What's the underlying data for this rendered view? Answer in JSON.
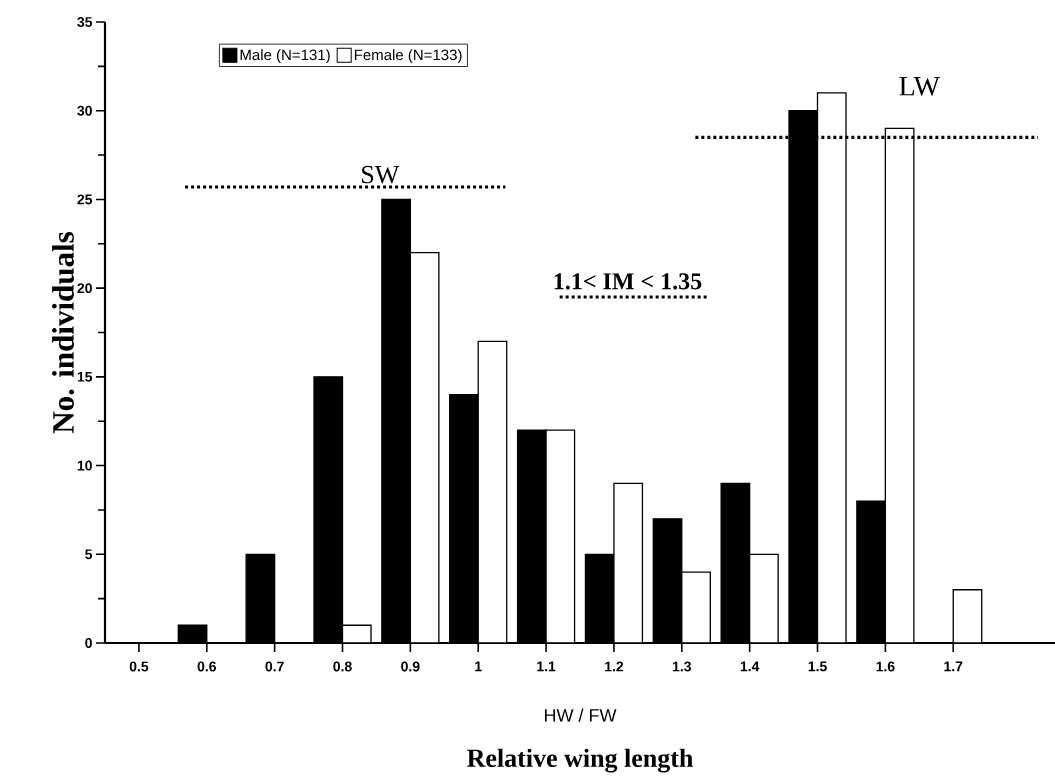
{
  "chart_data": {
    "type": "bar",
    "xlabel": "HW / FW",
    "ylabel": "No. individuals",
    "categories": [
      "0.5",
      "0.6",
      "0.7",
      "0.8",
      "0.9",
      "1",
      "1.1",
      "1.2",
      "1.3",
      "1.4",
      "1.5",
      "1.6",
      "1.7"
    ],
    "series": [
      {
        "name": "Male (N=131)",
        "color": "#000000",
        "values": [
          0,
          1,
          5,
          15,
          25,
          14,
          12,
          5,
          7,
          9,
          30,
          8,
          0
        ]
      },
      {
        "name": "Female (N=133)",
        "color": "#ffffff",
        "values": [
          0,
          0,
          0,
          1,
          22,
          17,
          12,
          9,
          4,
          5,
          31,
          29,
          3
        ]
      }
    ],
    "ylim": [
      0,
      35
    ],
    "yticks": [
      0,
      5,
      10,
      15,
      20,
      25,
      30,
      35
    ],
    "ref_lines": [
      {
        "axis": "y",
        "value": 25.7,
        "label": "SW",
        "line_style": "dotted"
      },
      {
        "axis": "y",
        "value": 19.5,
        "label": "1.1< IM < 1.35",
        "line_style": "dotted"
      },
      {
        "axis": "y",
        "value": 28.5,
        "label": "LW",
        "line_style": "dotted"
      }
    ],
    "annotations": [
      "Relative wing length"
    ],
    "legend": "top left",
    "grid": false
  }
}
